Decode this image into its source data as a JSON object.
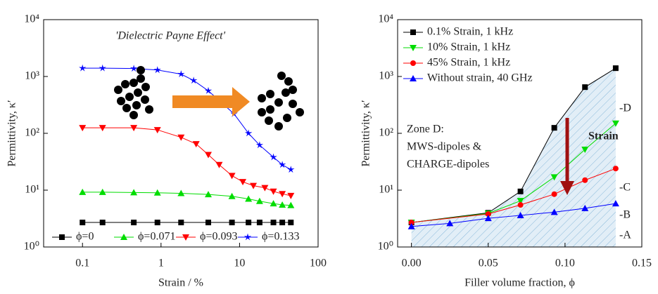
{
  "chart_data": [
    {
      "type": "line",
      "xscale": "log",
      "yscale": "log",
      "xlabel": "Strain / %",
      "ylabel": "Permittivity, κ′",
      "annotations": [
        "'Dielectric Payne Effect'"
      ],
      "legend": "bottom",
      "xlim": [
        0.032,
        100
      ],
      "xticks": [
        0.1,
        1,
        10,
        100
      ],
      "ylim": [
        1,
        10000
      ],
      "yticks": [
        {
          "value": 1,
          "label": "10⁰"
        },
        {
          "value": 10,
          "label": "10¹"
        },
        {
          "value": 100,
          "label": "10²"
        },
        {
          "value": 1000,
          "label": "10³"
        },
        {
          "value": 10000,
          "label": "10⁴"
        }
      ],
      "series": [
        {
          "name": "ϕ=0",
          "color": "#000000",
          "marker": "square",
          "x": [
            0.1,
            0.18,
            0.45,
            0.9,
            1.8,
            4,
            8,
            13,
            18,
            27,
            35,
            45
          ],
          "values": [
            2.7,
            2.7,
            2.7,
            2.7,
            2.7,
            2.7,
            2.7,
            2.7,
            2.7,
            2.7,
            2.7,
            2.7
          ]
        },
        {
          "name": "ϕ=0.071",
          "color": "#00dd00",
          "marker": "up",
          "x": [
            0.1,
            0.18,
            0.45,
            0.9,
            1.8,
            4,
            8,
            13,
            18,
            27,
            35,
            45
          ],
          "values": [
            9.2,
            9.2,
            9.1,
            9.0,
            8.8,
            8.4,
            7.8,
            7.0,
            6.4,
            5.8,
            5.5,
            5.4
          ]
        },
        {
          "name": "ϕ=0.093",
          "color": "#ff0000",
          "marker": "down",
          "x": [
            0.1,
            0.18,
            0.45,
            0.9,
            1.8,
            2.8,
            4,
            5.5,
            8,
            11,
            15,
            21,
            27,
            35,
            45
          ],
          "values": [
            125,
            125,
            125,
            115,
            85,
            65,
            42,
            28,
            18,
            14,
            12,
            11,
            9.5,
            8.6,
            8.0
          ]
        },
        {
          "name": "ϕ=0.133",
          "color": "#0000ff",
          "marker": "star",
          "x": [
            0.1,
            0.18,
            0.45,
            0.9,
            1.8,
            2.6,
            4,
            8.5,
            13,
            18,
            27,
            35,
            45
          ],
          "values": [
            1400,
            1400,
            1380,
            1300,
            1100,
            850,
            560,
            220,
            100,
            62,
            38,
            28,
            23
          ]
        }
      ]
    },
    {
      "type": "line",
      "xscale": "linear",
      "yscale": "log",
      "xlabel": "Filler volume fraction, ϕ",
      "ylabel": "Permittivity, κ′",
      "annotations": [
        "Zone D:",
        "MWS-dipoles &",
        "CHARGE-dipoles",
        "Strain",
        "-D",
        "-C",
        "-B",
        "-A"
      ],
      "legend": "upper left",
      "xlim": [
        -0.009,
        0.15
      ],
      "xticks": [
        {
          "value": 0,
          "label": "0.00"
        },
        0.05,
        {
          "value": 0.1,
          "label": "0.10"
        },
        0.15
      ],
      "ylim": [
        1,
        10000
      ],
      "yticks": [
        {
          "value": 1,
          "label": "10⁰"
        },
        {
          "value": 10,
          "label": "10¹"
        },
        {
          "value": 100,
          "label": "10²"
        },
        {
          "value": 1000,
          "label": "10³"
        },
        {
          "value": 10000,
          "label": "10⁴"
        }
      ],
      "series": [
        {
          "name": "0.1% Strain, 1 kHz",
          "color": "#000000",
          "marker": "square",
          "x": [
            0,
            0.05,
            0.071,
            0.093,
            0.113,
            0.133
          ],
          "values": [
            2.7,
            4.0,
            9.5,
            125,
            650,
            1400
          ]
        },
        {
          "name": "10% Strain, 1 kHz",
          "color": "#00dd00",
          "marker": "down",
          "x": [
            0,
            0.05,
            0.071,
            0.093,
            0.113,
            0.133
          ],
          "values": [
            2.7,
            3.9,
            6.5,
            17,
            52,
            150
          ]
        },
        {
          "name": "45% Strain, 1 kHz",
          "color": "#ff0000",
          "marker": "circle",
          "x": [
            0,
            0.05,
            0.071,
            0.093,
            0.113,
            0.133
          ],
          "values": [
            2.7,
            3.8,
            5.5,
            8.5,
            15,
            24
          ]
        },
        {
          "name": "Without strain, 40 GHz",
          "color": "#0000ff",
          "marker": "up",
          "x": [
            0,
            0.025,
            0.05,
            0.071,
            0.093,
            0.113,
            0.133
          ],
          "values": [
            2.3,
            2.6,
            3.2,
            3.6,
            4.1,
            4.8,
            5.8
          ]
        }
      ]
    }
  ]
}
